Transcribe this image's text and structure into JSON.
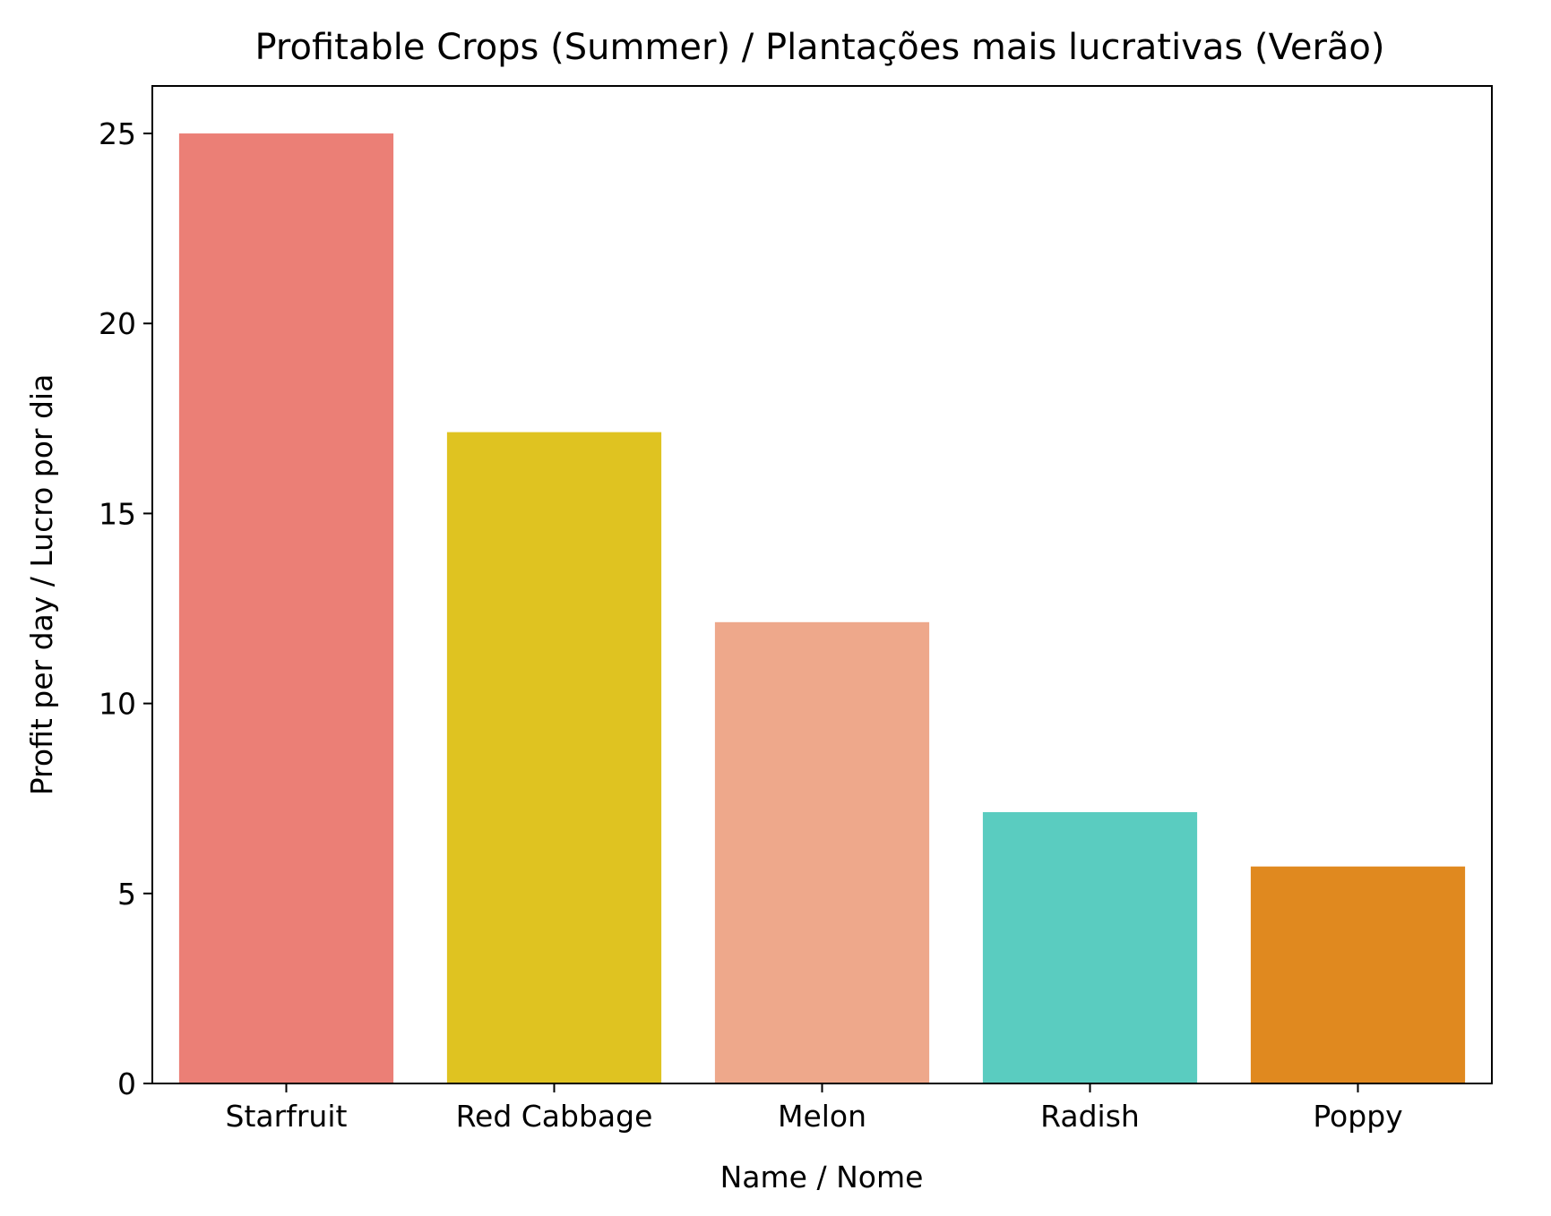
{
  "chart_data": {
    "type": "bar",
    "title": "Profitable Crops (Summer) / Plantações mais lucrativas (Verão)",
    "xlabel": "Name / Nome",
    "ylabel": "Profit per day / Lucro por dia",
    "categories": [
      "Starfruit",
      "Red Cabbage",
      "Melon",
      "Radish",
      "Poppy"
    ],
    "values": [
      25.0,
      17.14,
      12.14,
      7.14,
      5.71
    ],
    "colors": [
      "#eb7f76",
      "#dfc321",
      "#eea88b",
      "#5accc0",
      "#e0891f"
    ],
    "ylim": [
      0,
      26.25
    ],
    "yticks": [
      0,
      5,
      10,
      15,
      20,
      25
    ],
    "grid": false,
    "legend": "none"
  }
}
